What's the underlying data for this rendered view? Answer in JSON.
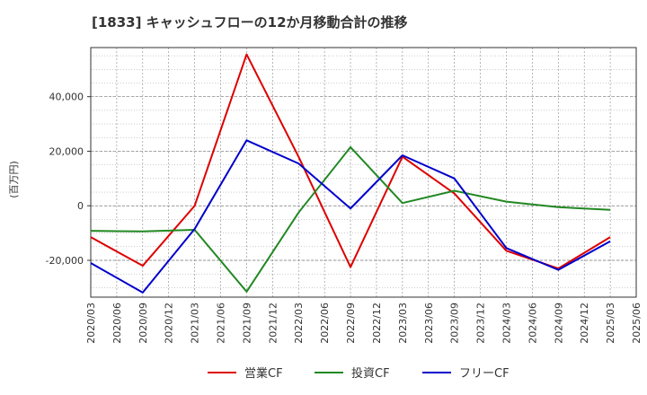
{
  "chart_data": {
    "type": "line",
    "title": "[1833]  キャッシュフローの12か月移動合計の推移",
    "ylabel": "(百万円)",
    "xlabel": "",
    "x": [
      "2020/03",
      "2020/06",
      "2020/09",
      "2020/12",
      "2021/03",
      "2021/06",
      "2021/09",
      "2021/12",
      "2022/03",
      "2022/06",
      "2022/09",
      "2022/12",
      "2023/03",
      "2023/06",
      "2023/09",
      "2023/12",
      "2024/03",
      "2024/06",
      "2024/09",
      "2024/12",
      "2025/03",
      "2025/06"
    ],
    "ylim": [
      -33500,
      58000
    ],
    "yticks": [
      -20000,
      0,
      20000,
      40000
    ],
    "ytick_labels": [
      "-20,000",
      "0",
      "20,000",
      "40,000"
    ],
    "grid": true,
    "legend_position": "bottom",
    "series": [
      {
        "name": "営業CF",
        "color": "#dd0000",
        "points": [
          [
            "2020/03",
            -11500
          ],
          [
            "2020/09",
            -22000
          ],
          [
            "2021/03",
            0
          ],
          [
            "2021/09",
            55500
          ],
          [
            "2022/03",
            18000
          ],
          [
            "2022/09",
            -22500
          ],
          [
            "2023/03",
            18000
          ],
          [
            "2023/09",
            4500
          ],
          [
            "2024/03",
            -16500
          ],
          [
            "2024/09",
            -23000
          ],
          [
            "2025/03",
            -11500
          ]
        ]
      },
      {
        "name": "投資CF",
        "color": "#228822",
        "points": [
          [
            "2020/03",
            -9200
          ],
          [
            "2020/09",
            -9400
          ],
          [
            "2021/03",
            -8800
          ],
          [
            "2021/09",
            -31500
          ],
          [
            "2022/03",
            -2500
          ],
          [
            "2022/09",
            21500
          ],
          [
            "2023/03",
            1000
          ],
          [
            "2023/09",
            5500
          ],
          [
            "2024/03",
            1500
          ],
          [
            "2024/09",
            -500
          ],
          [
            "2025/03",
            -1500
          ]
        ]
      },
      {
        "name": "フリーCF",
        "color": "#0000cc",
        "points": [
          [
            "2020/03",
            -21000
          ],
          [
            "2020/09",
            -31800
          ],
          [
            "2021/03",
            -8500
          ],
          [
            "2021/09",
            24000
          ],
          [
            "2022/03",
            15500
          ],
          [
            "2022/09",
            -1000
          ],
          [
            "2023/03",
            18500
          ],
          [
            "2023/09",
            10000
          ],
          [
            "2024/03",
            -15500
          ],
          [
            "2024/09",
            -23500
          ],
          [
            "2025/03",
            -13000
          ]
        ]
      }
    ]
  }
}
